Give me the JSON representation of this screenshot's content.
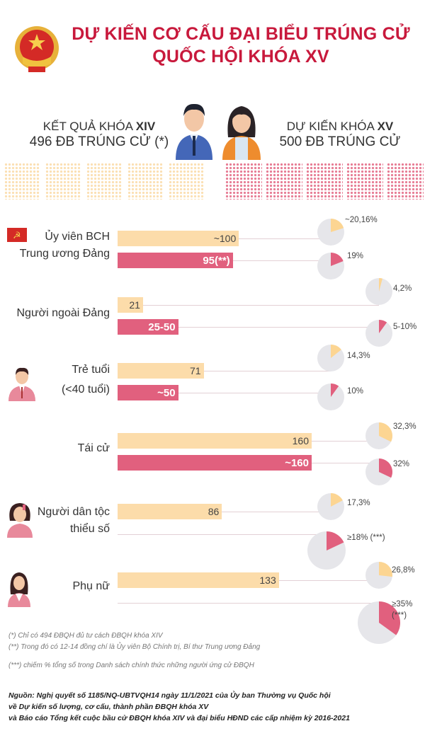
{
  "header": {
    "title_line1": "DỰ KIẾN CƠ CẤU ĐẠI BIỂU TRÚNG CỬ",
    "title_line2": "QUỐC HỘI KHÓA XV"
  },
  "summary": {
    "left_line1_prefix": "KẾT QUẢ KHÓA ",
    "left_line1_bold": "XIV",
    "left_line2": "496 ĐB TRÚNG CỬ (*)",
    "right_line1_prefix": "DỰ KIẾN KHÓA ",
    "right_line1_bold": "XV",
    "right_line2": "500 ĐB TRÚNG CỬ"
  },
  "colors": {
    "title": "#c8193c",
    "xiv": "#fcdcaa",
    "xv": "#e1607e",
    "pie_bg": "#e6e6ea"
  },
  "chart_data": {
    "type": "bar",
    "series": [
      {
        "name": "KHÓA XIV"
      },
      {
        "name": "KHÓA XV"
      }
    ],
    "rows": [
      {
        "label": [
          "Ủy viên BCH",
          "Trung ương Đảng"
        ],
        "icon": "party-flag-icon",
        "xiv": {
          "text": "~100",
          "value": 100,
          "pct_text": "~20,16%",
          "pct": 20.16
        },
        "xv": {
          "text": "95(**)",
          "value": 95,
          "pct_text": "19%",
          "pct": 19
        }
      },
      {
        "label": [
          "Người ngoài Đảng"
        ],
        "icon": "",
        "xiv": {
          "text": "21",
          "value": 21,
          "pct_text": "4,2%",
          "pct": 4.2
        },
        "xv": {
          "text": "25-50",
          "value": 50,
          "pct_text": "5-10%",
          "pct": 10
        }
      },
      {
        "label": [
          "Trẻ tuổi",
          "(<40 tuổi)"
        ],
        "icon": "young-man-icon",
        "xiv": {
          "text": "71",
          "value": 71,
          "pct_text": "14,3%",
          "pct": 14.3
        },
        "xv": {
          "text": "~50",
          "value": 50,
          "pct_text": "10%",
          "pct": 10
        }
      },
      {
        "label": [
          "Tái cử"
        ],
        "icon": "",
        "xiv": {
          "text": "160",
          "value": 160,
          "pct_text": "32,3%",
          "pct": 32.3
        },
        "xv": {
          "text": "~160",
          "value": 160,
          "pct_text": "32%",
          "pct": 32
        }
      },
      {
        "label": [
          "Người dân tộc",
          "thiểu số"
        ],
        "icon": "ethnic-woman-icon",
        "xiv": {
          "text": "86",
          "value": 86,
          "pct_text": "17,3%",
          "pct": 17.3
        },
        "xv": {
          "text": "",
          "value": null,
          "pct_text": "≥18% (***)",
          "pct": 18
        }
      },
      {
        "label": [
          "Phụ nữ"
        ],
        "icon": "woman-icon",
        "xiv": {
          "text": "133",
          "value": 133,
          "pct_text": "26,8%",
          "pct": 26.8
        },
        "xv": {
          "text": "",
          "value": null,
          "pct_text": "≥35%",
          "pct_text2": "(***)",
          "pct": 35
        }
      }
    ]
  },
  "footnotes": [
    "(*) Chỉ có 494 ĐBQH đủ tư cách ĐBQH khóa XIV",
    "(**) Trong đó có 12-14 đồng chí là Ủy viên Bộ Chính trị, Bí thư Trung ương Đảng",
    "(***) chiếm % tổng số trong Danh sách chính thức những người ứng cử ĐBQH"
  ],
  "source": [
    "Nguồn: Nghị quyết số 1185/NQ-UBTVQH14 ngày 11/1/2021 của Ủy ban Thường vụ Quốc hội",
    "về Dự kiến số lượng, cơ cấu, thành phần ĐBQH khóa XV",
    "và Báo cáo Tổng kết cuộc bầu cử ĐBQH khóa XIV  và đại biểu HĐND các cấp nhiệm kỳ 2016-2021"
  ]
}
